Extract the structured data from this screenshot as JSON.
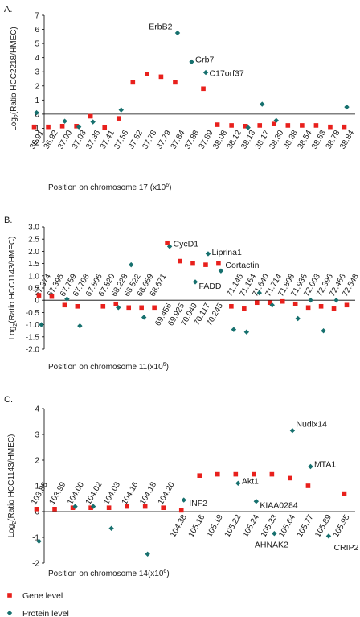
{
  "colors": {
    "gene": "#e8201c",
    "protein": "#16706e",
    "axis": "#000000"
  },
  "legend": {
    "gene_label": "Gene level",
    "protein_label": "Protein level",
    "gene_marker": "square",
    "protein_marker": "diamond"
  },
  "chart_data": [
    {
      "type": "scatter",
      "panel_label": "A.",
      "ylabel": "Log2(Ratio HCC2218/HMEC)",
      "ylabel_parts": [
        "Log",
        "2",
        "(Ratio HCC2218/HMEC)"
      ],
      "xlabel": "Position on chromosome 17 (x10",
      "xlabel_sup": "6",
      "xlabel_end": ")",
      "ylim": [
        -2,
        7
      ],
      "yticks": [
        -2,
        -1,
        0,
        1,
        2,
        3,
        4,
        5,
        6,
        7
      ],
      "categories": [
        "36.91",
        "36.92",
        "37.00",
        "37.03",
        "37.36",
        "37.41",
        "37.56",
        "37.62",
        "37.78",
        "37.79",
        "37.84",
        "37.88",
        "37.89",
        "38.08",
        "38.12",
        "38.13",
        "38.17",
        "38.30",
        "38.38",
        "38.54",
        "38.63",
        "38.78",
        "38.84"
      ],
      "series": [
        {
          "name": "Gene level",
          "marker": "square",
          "values": [
            -0.9,
            -0.9,
            -0.85,
            -0.85,
            -0.15,
            -0.95,
            -0.3,
            2.25,
            2.85,
            2.65,
            2.25,
            null,
            1.8,
            -0.75,
            -0.8,
            -0.85,
            -0.8,
            -0.7,
            -0.8,
            -0.8,
            -0.8,
            -0.9,
            -0.9
          ]
        },
        {
          "name": "Protein level",
          "marker": "diamond",
          "values": [
            0.1,
            null,
            -0.5,
            -0.9,
            -0.55,
            null,
            0.3,
            null,
            null,
            null,
            5.75,
            3.7,
            2.95,
            null,
            null,
            -0.95,
            0.7,
            -0.45,
            null,
            null,
            null,
            null,
            0.5
          ]
        }
      ],
      "annotations": [
        {
          "text": "ErbB2",
          "category": "37.84",
          "series": "Protein level"
        },
        {
          "text": "Grb7",
          "category": "37.88",
          "series": "Protein level"
        },
        {
          "text": "C17orf37",
          "category": "37.89",
          "series": "Protein level"
        }
      ]
    },
    {
      "type": "scatter",
      "panel_label": "B.",
      "ylabel": "Log2(Ratio HCC1143/HMEC)",
      "ylabel_parts": [
        "Log",
        "2",
        "(Ratio HCC1143/HMEC)"
      ],
      "xlabel": "Position on chromosome 11(x10",
      "xlabel_sup": "6",
      "xlabel_end": ")",
      "ylim": [
        -2.0,
        3.0
      ],
      "yticks": [
        -2.0,
        -1.5,
        -1.0,
        -0.5,
        0,
        0.5,
        1.0,
        1.5,
        2.0,
        2.5,
        3.0
      ],
      "ytick_labels": [
        "-2.0",
        "-1.5",
        "-1.0",
        "-0.5",
        "0",
        "0.5",
        "1.0",
        "1.5",
        "2.0",
        "2.5",
        "3.0"
      ],
      "categories": [
        "67.374",
        "67.395",
        "67.759",
        "67.798",
        "67.806",
        "67.820",
        "68.228",
        "68.522",
        "68.659",
        "68.671",
        "69.456",
        "69.925",
        "70.049",
        "70.117",
        "70.245",
        "71.145",
        "71.164",
        "71.640",
        "71.714",
        "71.808",
        "71.936",
        "72.003",
        "72.396",
        "72.466",
        "72.548"
      ],
      "series": [
        {
          "name": "Gene level",
          "marker": "square",
          "values": [
            0.2,
            0.15,
            -0.2,
            -0.25,
            null,
            -0.25,
            -0.15,
            -0.3,
            -0.3,
            -0.3,
            2.35,
            1.6,
            1.5,
            1.45,
            1.5,
            -0.25,
            -0.35,
            -0.1,
            -0.1,
            -0.05,
            -0.15,
            -0.3,
            -0.25,
            -0.35,
            -0.2
          ]
        },
        {
          "name": "Protein level",
          "marker": "diamond",
          "values": [
            -1.0,
            null,
            0.05,
            -1.05,
            null,
            null,
            -0.3,
            1.45,
            -0.7,
            null,
            2.2,
            null,
            0.75,
            1.9,
            1.2,
            -1.2,
            -1.3,
            0.3,
            -0.2,
            null,
            -0.75,
            0.0,
            -1.25,
            0.0,
            null
          ]
        }
      ],
      "annotations": [
        {
          "text": "CycD1",
          "category": "69.456",
          "series": "Gene level"
        },
        {
          "text": "Liprina1",
          "category": "70.117",
          "series": "Protein level"
        },
        {
          "text": "Cortactin",
          "category": "70.245",
          "series": "Gene level"
        },
        {
          "text": "FADD",
          "category": "70.049",
          "series": "Protein level"
        }
      ]
    },
    {
      "type": "scatter",
      "panel_label": "C.",
      "ylabel": "Log2(Ratio HCC1143/HMEC)",
      "ylabel_parts": [
        "Log",
        "2",
        "(Ratio HCC1143/HMEC)"
      ],
      "xlabel": "Position on chromosome 14(x10",
      "xlabel_sup": "6",
      "xlabel_end": ")",
      "ylim": [
        -2,
        4
      ],
      "yticks": [
        -2,
        -1,
        0,
        1,
        2,
        3,
        4
      ],
      "categories": [
        "103.85",
        "103.99",
        "104.00",
        "104.02",
        "104.03",
        "104.16",
        "104.18",
        "104.20",
        "104.38",
        "105.16",
        "105.19",
        "105.22",
        "105.24",
        "105.33",
        "105.64",
        "105.77",
        "105.89",
        "105.95"
      ],
      "series": [
        {
          "name": "Gene level",
          "marker": "square",
          "values": [
            0.1,
            0.1,
            0.15,
            0.15,
            0.15,
            0.2,
            0.2,
            0.15,
            0.05,
            1.4,
            1.45,
            1.45,
            1.45,
            1.45,
            1.3,
            1.0,
            null,
            0.7
          ]
        },
        {
          "name": "Protein level",
          "marker": "diamond",
          "values": [
            -1.15,
            null,
            0.2,
            0.2,
            -0.65,
            null,
            -1.65,
            null,
            0.45,
            null,
            null,
            1.1,
            0.4,
            -0.85,
            3.15,
            1.75,
            -0.95,
            null
          ]
        }
      ],
      "annotations": [
        {
          "text": "INF2",
          "category": "104.38",
          "series": "Protein level"
        },
        {
          "text": "Akt1",
          "category": "105.22",
          "series": "Protein level"
        },
        {
          "text": "KIAA0284",
          "category": "105.24",
          "series": "Protein level"
        },
        {
          "text": "AHNAK2",
          "category": "105.33",
          "series": "Protein level"
        },
        {
          "text": "Nudix14",
          "category": "105.64",
          "series": "Protein level"
        },
        {
          "text": "MTA1",
          "category": "105.77",
          "series": "Protein level"
        },
        {
          "text": "CRIP2",
          "category": "105.89",
          "series": "Protein level"
        }
      ]
    }
  ]
}
